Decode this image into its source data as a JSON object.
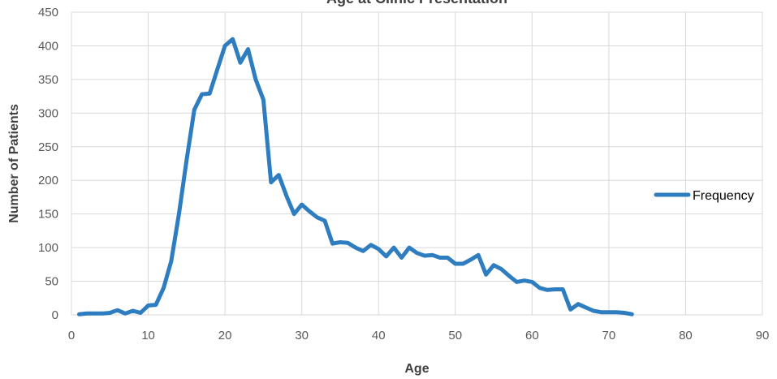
{
  "chart_data": {
    "type": "line",
    "title": "Age at Clinic Presentation",
    "xlabel": "Age",
    "ylabel": "Number of Patients",
    "xlim": [
      0,
      90
    ],
    "ylim": [
      0,
      450
    ],
    "xticks": [
      0,
      10,
      20,
      30,
      40,
      50,
      60,
      70,
      80,
      90
    ],
    "yticks": [
      0,
      50,
      100,
      150,
      200,
      250,
      300,
      350,
      400,
      450
    ],
    "grid": true,
    "legend_position": "right",
    "series": [
      {
        "name": "Frequency",
        "color": "#2e7dc0",
        "x": [
          1,
          2,
          3,
          4,
          5,
          6,
          7,
          8,
          9,
          10,
          11,
          12,
          13,
          14,
          15,
          16,
          17,
          18,
          19,
          20,
          21,
          22,
          23,
          24,
          25,
          26,
          27,
          28,
          29,
          30,
          31,
          32,
          33,
          34,
          35,
          36,
          37,
          38,
          39,
          40,
          41,
          42,
          43,
          44,
          45,
          46,
          47,
          48,
          49,
          50,
          51,
          52,
          53,
          54,
          55,
          56,
          57,
          58,
          59,
          60,
          61,
          62,
          63,
          64,
          65,
          66,
          67,
          68,
          69,
          70,
          71,
          72,
          73
        ],
        "y": [
          1,
          2,
          2,
          2,
          3,
          7,
          2,
          6,
          3,
          14,
          15,
          40,
          80,
          150,
          230,
          305,
          328,
          329,
          365,
          400,
          410,
          375,
          395,
          350,
          320,
          197,
          208,
          177,
          150,
          164,
          154,
          145,
          140,
          106,
          108,
          107,
          100,
          95,
          104,
          98,
          87,
          100,
          85,
          100,
          92,
          88,
          89,
          85,
          85,
          76,
          76,
          82,
          89,
          60,
          74,
          68,
          58,
          49,
          51,
          49,
          40,
          37,
          38,
          38,
          8,
          16,
          11,
          6,
          4,
          4,
          4,
          3,
          1
        ]
      }
    ]
  }
}
